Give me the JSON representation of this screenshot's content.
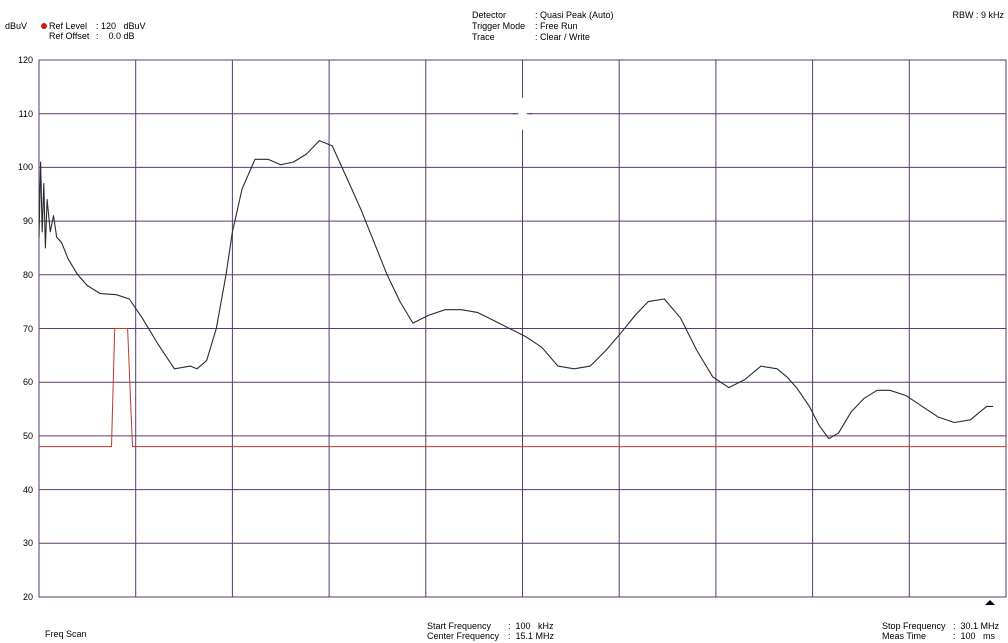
{
  "header": {
    "unit": "dBuV",
    "ref_level_label": "Ref Level",
    "ref_level_value": ": 120   dBuV",
    "ref_offset_label": "Ref Offset",
    "ref_offset_value": ":    0.0 dB",
    "detector_label": "Detector",
    "detector_value": ": Quasi Peak (Auto)",
    "trigger_label": "Trigger Mode",
    "trigger_value": ": Free Run",
    "trace_label": "Trace",
    "trace_value": ": Clear / Write",
    "rbw": "RBW : 9 kHz"
  },
  "footer": {
    "mode": "Freq Scan",
    "start_label": "Start Frequency",
    "start_value": ":  100   kHz",
    "center_label": "Center Frequency",
    "center_value": ":  15.1 MHz",
    "stop_label": "Stop Frequency",
    "stop_value": ":  30.1 MHz",
    "meas_label": "Meas Time",
    "meas_value": ":  100   ms"
  },
  "colors": {
    "grid": "#5a3a6e",
    "trace": "#2b2b2b",
    "limit": "#c0392b",
    "ref_dot": "#d01818"
  },
  "chart_data": {
    "type": "line",
    "title": "",
    "xlabel": "",
    "ylabel": "dBuV",
    "x_unit": "MHz",
    "xlim": [
      0.1,
      30.1
    ],
    "ylim": [
      20,
      120
    ],
    "yticks": [
      "120",
      "110",
      "100",
      "90",
      "80",
      "70",
      "60",
      "50",
      "40",
      "30",
      "20"
    ],
    "grid": true,
    "x_divisions": 10,
    "series": [
      {
        "role": "measurement trace",
        "x": [
          0.1,
          0.15,
          0.2,
          0.25,
          0.3,
          0.35,
          0.45,
          0.55,
          0.65,
          0.8,
          1.0,
          1.3,
          1.6,
          2.0,
          2.5,
          2.9,
          3.3,
          3.8,
          4.3,
          4.8,
          5.0,
          5.3,
          5.6,
          5.9,
          6.1,
          6.4,
          6.8,
          7.2,
          7.6,
          8.0,
          8.4,
          8.8,
          9.2,
          9.5,
          9.8,
          10.1,
          10.5,
          10.9,
          11.3,
          11.7,
          12.2,
          12.7,
          13.2,
          13.7,
          14.2,
          14.7,
          15.2,
          15.7,
          16.2,
          16.7,
          17.2,
          17.7,
          18.2,
          18.6,
          19.0,
          19.5,
          20.0,
          20.5,
          21.0,
          21.5,
          22.0,
          22.5,
          23.0,
          23.3,
          23.6,
          24.0,
          24.3,
          24.6,
          24.9,
          25.3,
          25.7,
          26.1,
          26.5,
          27.0,
          27.5,
          28.0,
          28.5,
          29.0,
          29.3,
          29.5,
          29.7
        ],
        "y": [
          87,
          101,
          88,
          97,
          85,
          94,
          88,
          91,
          87,
          86,
          83,
          80,
          78,
          76.5,
          76.3,
          75.5,
          72,
          67,
          62.5,
          63,
          62.5,
          64,
          70,
          80,
          88,
          96,
          101.5,
          101.5,
          100.5,
          101,
          102.5,
          105,
          104,
          100,
          96,
          92,
          86,
          80,
          75,
          71,
          72.5,
          73.5,
          73.5,
          73,
          71.5,
          70,
          68.5,
          66.5,
          63,
          62.5,
          63,
          66,
          69.5,
          72.5,
          75,
          75.5,
          72,
          66,
          61,
          59,
          60.5,
          63,
          62.5,
          61,
          59,
          55.5,
          52,
          49.5,
          50.5,
          54.5,
          57,
          58.5,
          58.5,
          57.5,
          55.5,
          53.5,
          52.5,
          53,
          54.5,
          55.5,
          55.5
        ]
      },
      {
        "role": "limit line",
        "x": [
          0.1,
          2.35,
          2.45,
          2.65,
          2.85,
          3.0,
          30.1
        ],
        "y": [
          48,
          48,
          70,
          70,
          70,
          48,
          48
        ]
      }
    ]
  }
}
